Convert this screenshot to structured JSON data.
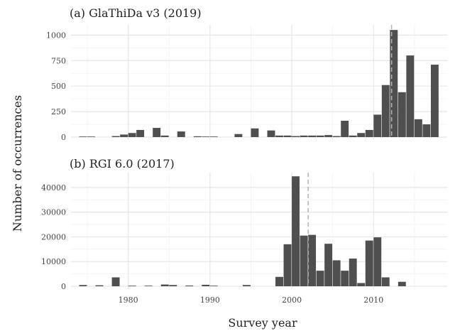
{
  "chart_data": {
    "type": "bar",
    "xlabel": "Survey year",
    "ylabel": "Number of occurrences",
    "xlim": [
      1973,
      2019
    ],
    "x_ticks": [
      1980,
      1990,
      2000,
      2010
    ],
    "grid": true,
    "bin_width_years": 1,
    "panels": [
      {
        "title": "(a) GlaThiDa v3 (2019)",
        "ylim": [
          0,
          1100
        ],
        "y_ticks": [
          0,
          250,
          500,
          750,
          1000
        ],
        "y_tick_labels": [
          "0",
          "250",
          "500",
          "750",
          "1000"
        ],
        "dashed_line_x": 2012.2,
        "bins": [
          {
            "year": 1974,
            "count": 3
          },
          {
            "year": 1975,
            "count": 2
          },
          {
            "year": 1978,
            "count": 10
          },
          {
            "year": 1979,
            "count": 25
          },
          {
            "year": 1980,
            "count": 40
          },
          {
            "year": 1981,
            "count": 70
          },
          {
            "year": 1983,
            "count": 90
          },
          {
            "year": 1984,
            "count": 15
          },
          {
            "year": 1986,
            "count": 55
          },
          {
            "year": 1988,
            "count": 8
          },
          {
            "year": 1989,
            "count": 5
          },
          {
            "year": 1990,
            "count": 5
          },
          {
            "year": 1993,
            "count": 30
          },
          {
            "year": 1995,
            "count": 85
          },
          {
            "year": 1997,
            "count": 65
          },
          {
            "year": 1998,
            "count": 15
          },
          {
            "year": 1999,
            "count": 15
          },
          {
            "year": 2000,
            "count": 10
          },
          {
            "year": 2001,
            "count": 15
          },
          {
            "year": 2002,
            "count": 15
          },
          {
            "year": 2003,
            "count": 15
          },
          {
            "year": 2004,
            "count": 20
          },
          {
            "year": 2005,
            "count": 10
          },
          {
            "year": 2006,
            "count": 160
          },
          {
            "year": 2007,
            "count": 15
          },
          {
            "year": 2008,
            "count": 40
          },
          {
            "year": 2009,
            "count": 70
          },
          {
            "year": 2010,
            "count": 220
          },
          {
            "year": 2011,
            "count": 510
          },
          {
            "year": 2012,
            "count": 1050
          },
          {
            "year": 2013,
            "count": 440
          },
          {
            "year": 2014,
            "count": 800
          },
          {
            "year": 2015,
            "count": 175
          },
          {
            "year": 2016,
            "count": 125
          },
          {
            "year": 2017,
            "count": 710
          }
        ]
      },
      {
        "title": "(b) RGI 6.0 (2017)",
        "ylim": [
          0,
          46000
        ],
        "y_ticks": [
          0,
          10000,
          20000,
          30000,
          40000
        ],
        "y_tick_labels": [
          "0",
          "10000",
          "20000",
          "30000",
          "40000"
        ],
        "dashed_line_x": 2002,
        "bins": [
          {
            "year": 1974,
            "count": 500
          },
          {
            "year": 1976,
            "count": 400
          },
          {
            "year": 1978,
            "count": 3600
          },
          {
            "year": 1980,
            "count": 200
          },
          {
            "year": 1982,
            "count": 200
          },
          {
            "year": 1984,
            "count": 700
          },
          {
            "year": 1985,
            "count": 500
          },
          {
            "year": 1987,
            "count": 300
          },
          {
            "year": 1989,
            "count": 600
          },
          {
            "year": 1990,
            "count": 200
          },
          {
            "year": 1994,
            "count": 500
          },
          {
            "year": 1998,
            "count": 3800
          },
          {
            "year": 1999,
            "count": 17000
          },
          {
            "year": 2000,
            "count": 44500
          },
          {
            "year": 2001,
            "count": 20500
          },
          {
            "year": 2002,
            "count": 20800
          },
          {
            "year": 2003,
            "count": 6300
          },
          {
            "year": 2004,
            "count": 17200
          },
          {
            "year": 2005,
            "count": 10500
          },
          {
            "year": 2006,
            "count": 6300
          },
          {
            "year": 2007,
            "count": 11200
          },
          {
            "year": 2008,
            "count": 1300
          },
          {
            "year": 2009,
            "count": 18500
          },
          {
            "year": 2010,
            "count": 19800
          },
          {
            "year": 2011,
            "count": 3600
          },
          {
            "year": 2013,
            "count": 1800
          }
        ]
      }
    ]
  }
}
